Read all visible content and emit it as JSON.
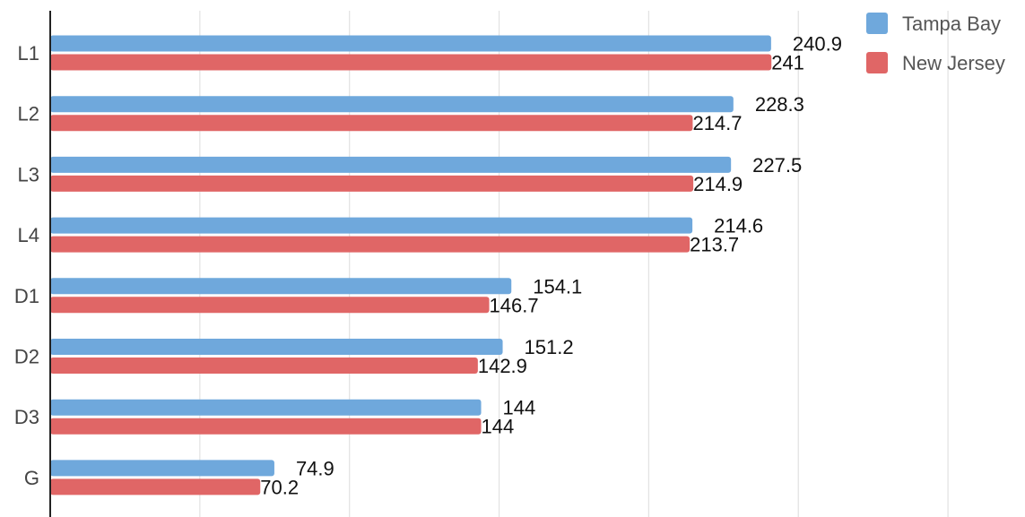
{
  "chart_data": {
    "type": "bar",
    "orientation": "horizontal",
    "categories": [
      "L1",
      "L2",
      "L3",
      "L4",
      "D1",
      "D2",
      "D3",
      "G"
    ],
    "series": [
      {
        "name": "Tampa Bay",
        "color": "#6fa8dc",
        "values": [
          240.9,
          228.3,
          227.5,
          214.6,
          154.1,
          151.2,
          144,
          74.9
        ],
        "labels": [
          "240.9",
          "228.3",
          "227.5",
          "214.6",
          "154.1",
          "151.2",
          "144",
          "74.9"
        ]
      },
      {
        "name": "New Jersey",
        "color": "#e06666",
        "values": [
          241,
          214.7,
          214.9,
          213.7,
          146.7,
          142.9,
          144,
          70.2
        ],
        "labels": [
          "241",
          "214.7",
          "214.9",
          "213.7",
          "146.7",
          "142.9",
          "144",
          "70.2"
        ]
      }
    ],
    "title": "",
    "xlabel": "",
    "ylabel": "",
    "xlim": [
      0,
      300
    ],
    "grid": true,
    "legend_position": "top-right"
  }
}
